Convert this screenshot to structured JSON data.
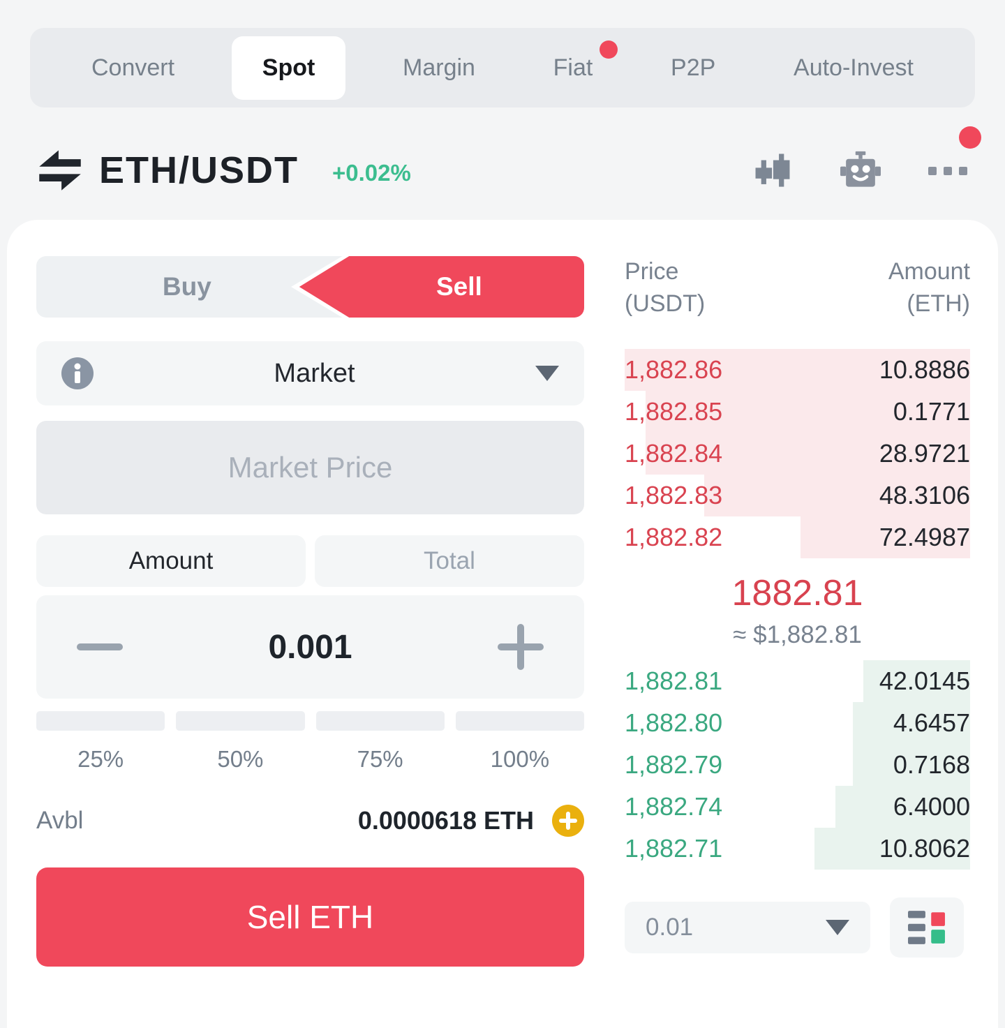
{
  "colors": {
    "accent_red": "#f0485b",
    "ask_red": "#d94350",
    "bid_green": "#3aa880",
    "change_green": "#3cbd8f",
    "deposit_yellow": "#eab00e"
  },
  "tab_bar": {
    "items": [
      {
        "label": "Convert",
        "active": false,
        "badge": false
      },
      {
        "label": "Spot",
        "active": true,
        "badge": false
      },
      {
        "label": "Margin",
        "active": false,
        "badge": false
      },
      {
        "label": "Fiat",
        "active": false,
        "badge": true
      },
      {
        "label": "P2P",
        "active": false,
        "badge": false
      },
      {
        "label": "Auto-Invest",
        "active": false,
        "badge": false
      }
    ]
  },
  "header": {
    "pair": "ETH/USDT",
    "change": "+0.02%"
  },
  "form": {
    "buy_label": "Buy",
    "sell_label": "Sell",
    "order_type": "Market",
    "price_placeholder": "Market Price",
    "amount_tab": "Amount",
    "total_tab": "Total",
    "quantity": "0.001",
    "percent_labels": [
      "25%",
      "50%",
      "75%",
      "100%"
    ],
    "avbl_label": "Avbl",
    "avbl_value": "0.0000618 ETH",
    "submit_label": "Sell ETH"
  },
  "order_book": {
    "price_header_line1": "Price",
    "price_header_line2": "(USDT)",
    "amount_header_line1": "Amount",
    "amount_header_line2": "(ETH)",
    "asks": [
      {
        "price": "1,882.86",
        "amount": "10.8886",
        "depth_pct": 100
      },
      {
        "price": "1,882.85",
        "amount": "0.1771",
        "depth_pct": 94
      },
      {
        "price": "1,882.84",
        "amount": "28.9721",
        "depth_pct": 94
      },
      {
        "price": "1,882.83",
        "amount": "48.3106",
        "depth_pct": 77
      },
      {
        "price": "1,882.82",
        "amount": "72.4987",
        "depth_pct": 49
      }
    ],
    "last_price": "1882.81",
    "approx_price": "≈ $1,882.81",
    "bids": [
      {
        "price": "1,882.81",
        "amount": "42.0145",
        "depth_pct": 31
      },
      {
        "price": "1,882.80",
        "amount": "4.6457",
        "depth_pct": 34
      },
      {
        "price": "1,882.79",
        "amount": "0.7168",
        "depth_pct": 34
      },
      {
        "price": "1,882.74",
        "amount": "6.4000",
        "depth_pct": 39
      },
      {
        "price": "1,882.71",
        "amount": "10.8062",
        "depth_pct": 45
      }
    ],
    "tick_size": "0.01"
  }
}
